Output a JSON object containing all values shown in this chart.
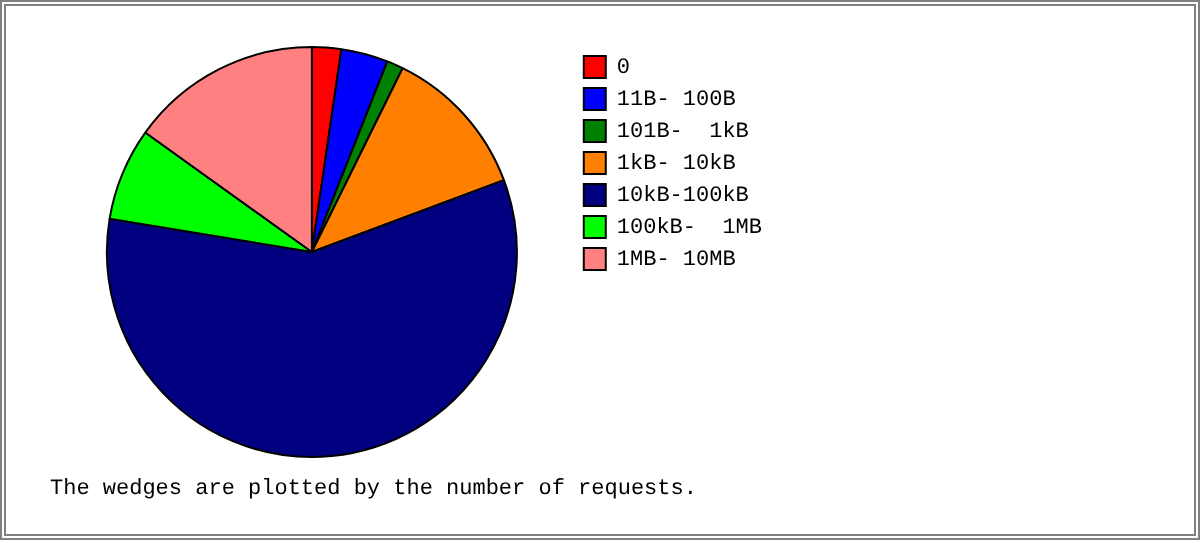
{
  "chart_data": {
    "type": "pie",
    "categories": [
      "0",
      "11B- 100B",
      "101B-  1kB",
      "1kB- 10kB",
      "10kB-100kB",
      "100kB-  1MB",
      "1MB- 10MB"
    ],
    "values": [
      2.3,
      3.7,
      1.3,
      12.0,
      58.3,
      7.3,
      15.1
    ],
    "colors": [
      "#ff0000",
      "#0000ff",
      "#008000",
      "#ff8000",
      "#000080",
      "#00ff00",
      "#ff8080"
    ],
    "legend": "right",
    "annotations": [
      "The wedges are plotted by the number of requests."
    ]
  }
}
